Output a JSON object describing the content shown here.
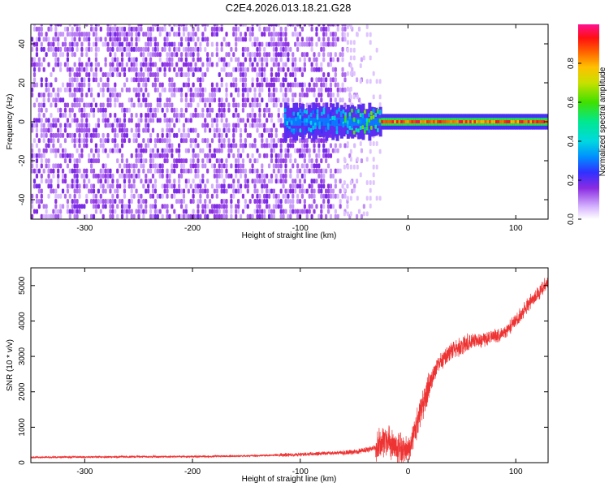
{
  "title": "C2E4.2026.013.18.21.G28",
  "chart_data": [
    {
      "type": "heatmap",
      "name": "spectrogram",
      "xlabel": "Height of straight line (km)",
      "ylabel": "Frequency (Hz)",
      "xlim": [
        -350,
        130
      ],
      "ylim": [
        -50,
        50
      ],
      "xticks": [
        -300,
        -200,
        -100,
        0,
        100
      ],
      "yticks": [
        -40,
        -20,
        0,
        20,
        40
      ],
      "colorbar": {
        "label": "Normalized spectral amplitude",
        "range": [
          0,
          1
        ],
        "ticks": [
          0.0,
          0.2,
          0.4,
          0.6,
          0.8
        ]
      },
      "features": {
        "noise_region_x": [
          -350,
          -40
        ],
        "faint_noise_x": [
          -60,
          -25
        ],
        "signal_band_x": [
          -115,
          130
        ],
        "signal_band_freq_center": 0,
        "strong_line_start_x": -25
      }
    },
    {
      "type": "line",
      "name": "snr",
      "xlabel": "Height of straight line (km)",
      "ylabel": "SNR (10 * v/v)",
      "xlim": [
        -350,
        130
      ],
      "ylim": [
        0,
        5500
      ],
      "xticks": [
        -300,
        -200,
        -100,
        0,
        100
      ],
      "yticks": [
        0,
        1000,
        2000,
        3000,
        4000,
        5000
      ],
      "color": "#ee3333",
      "x": [
        -350,
        -300,
        -250,
        -200,
        -150,
        -100,
        -80,
        -60,
        -50,
        -40,
        -30,
        -25,
        -20,
        -15,
        -10,
        -5,
        0,
        5,
        10,
        15,
        20,
        25,
        30,
        40,
        50,
        60,
        70,
        80,
        90,
        100,
        110,
        120,
        130
      ],
      "y": [
        150,
        160,
        165,
        170,
        190,
        230,
        260,
        280,
        300,
        350,
        430,
        550,
        650,
        550,
        430,
        380,
        400,
        750,
        1300,
        1800,
        2200,
        2600,
        2850,
        3150,
        3300,
        3420,
        3480,
        3550,
        3700,
        4000,
        4400,
        4750,
        5100
      ]
    }
  ]
}
